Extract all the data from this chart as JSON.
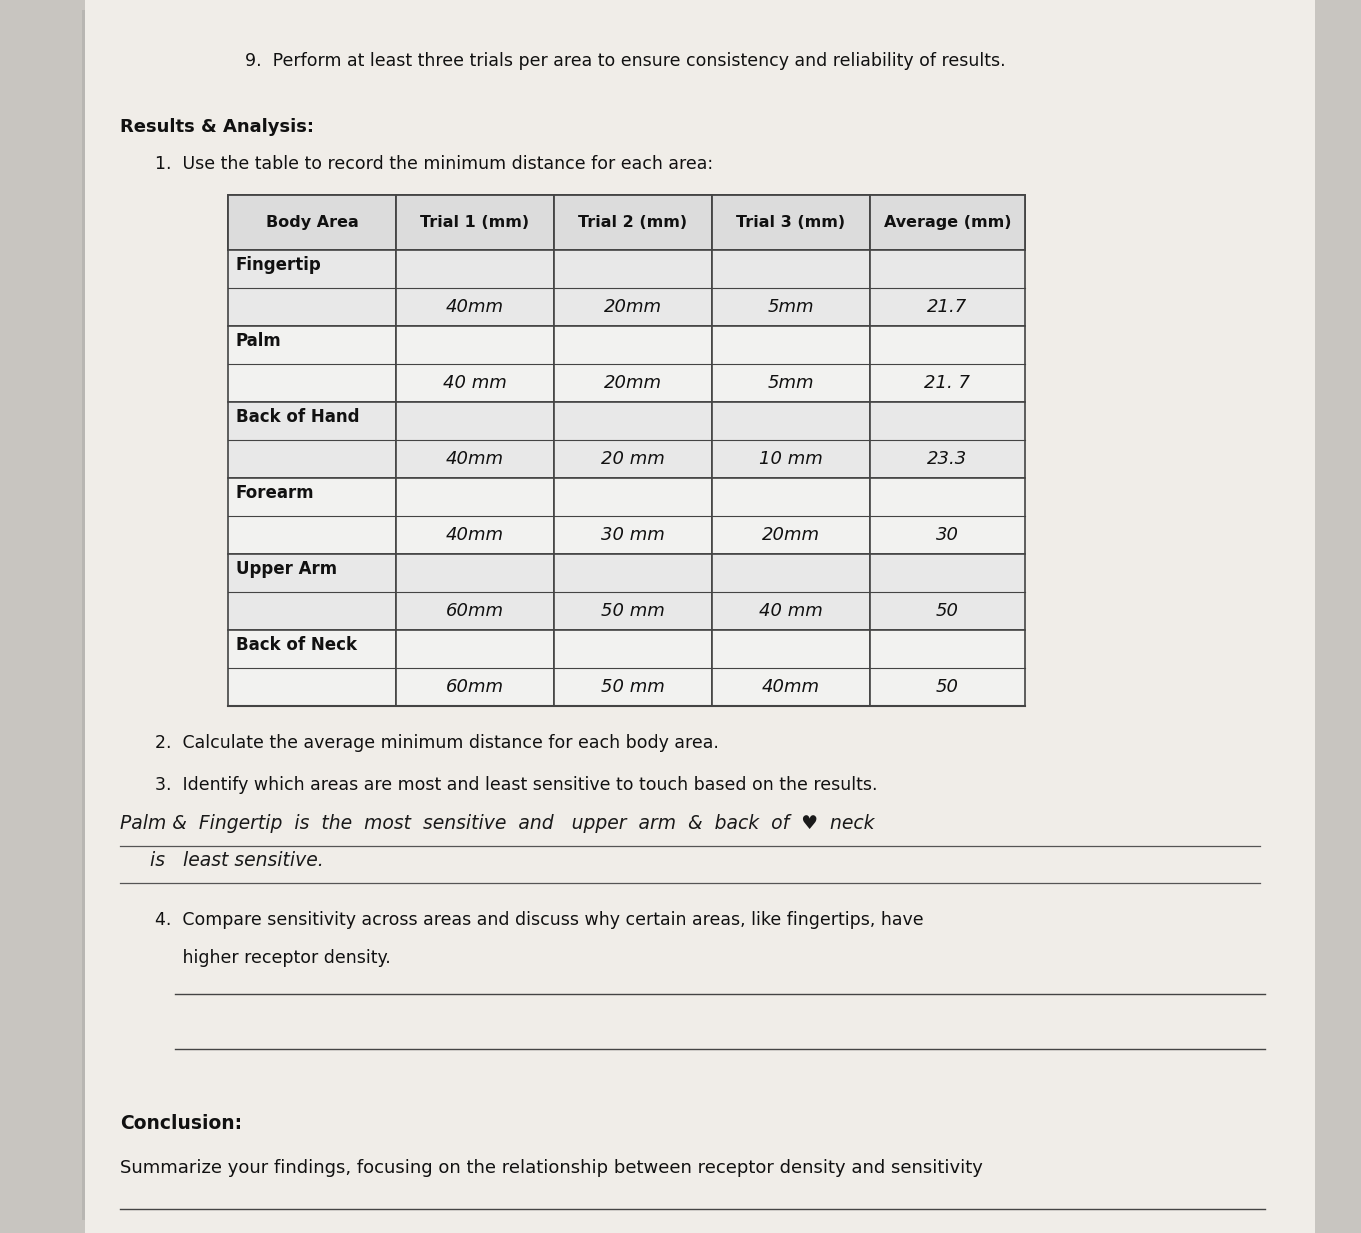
{
  "bg_color": "#c8c5c0",
  "paper_color": "#f0ede8",
  "item9_text": "9.  Perform at least three trials per area to ensure consistency and reliability of results.",
  "results_header": "Results & Analysis:",
  "item1_text": "1.  Use the table to record the minimum distance for each area:",
  "table_headers": [
    "Body Area",
    "Trial 1 (mm)",
    "Trial 2 (mm)",
    "Trial 3 (mm)",
    "Average (mm)"
  ],
  "body_areas": [
    "Fingertip",
    "Palm",
    "Back of Hand",
    "Forearm",
    "Upper Arm",
    "Back of Neck"
  ],
  "trial1": [
    "40mm",
    "40 mm",
    "40mm",
    "40mm",
    "60mm",
    "60mm"
  ],
  "trial2": [
    "20mm",
    "20mm",
    "20 mm",
    "30 mm",
    "50 mm",
    "50 mm"
  ],
  "trial3": [
    "5mm",
    "5mm",
    "10 mm",
    "20mm",
    "40 mm",
    "40mm"
  ],
  "average": [
    "21.7",
    "21. 7",
    "23.3",
    "30",
    "50",
    "50"
  ],
  "item2_text": "2.  Calculate the average minimum distance for each body area.",
  "item3_text": "3.  Identify which areas are most and least sensitive to touch based on the results.",
  "hw_line1": "Palm &  Fingertip  is  the  most  sensitive  and   upper  arm  &  back  of  ♥  neck",
  "hw_line2": "     is   least sensitive.",
  "item4_line1": "4.  Compare sensitivity across areas and discuss why certain areas, like fingertips, have",
  "item4_line2": "     higher receptor density.",
  "conclusion_header": "Conclusion:",
  "conclusion_text": "Summarize your findings, focusing on the relationship between receptor density and sensitivity"
}
